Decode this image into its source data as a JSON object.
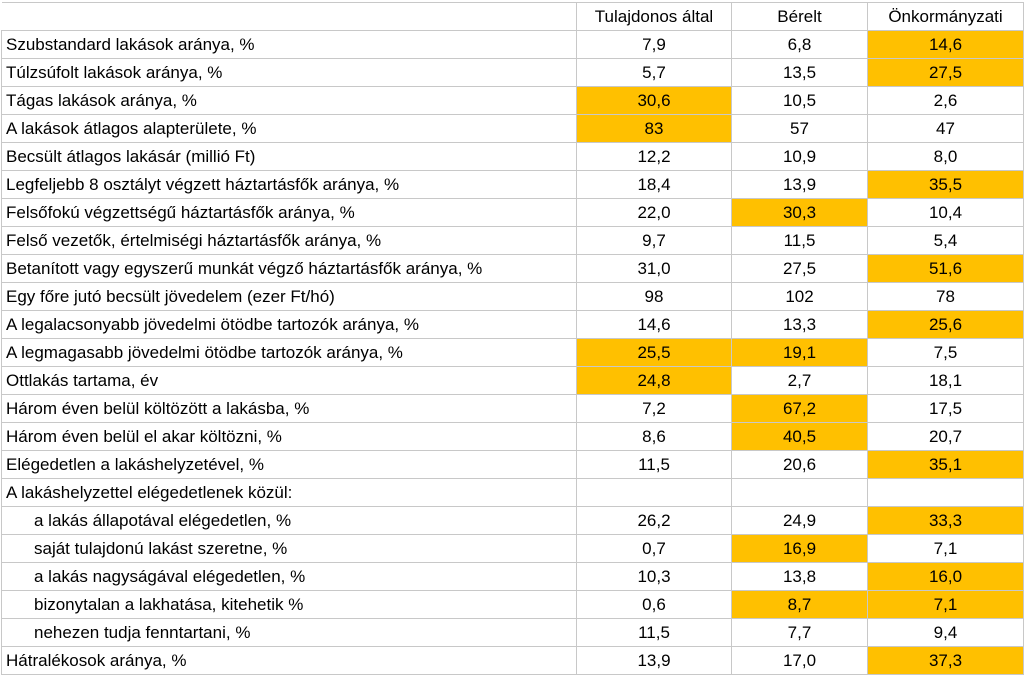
{
  "colors": {
    "highlight": "#ffc000",
    "grid": "#c8c8c8"
  },
  "headers": [
    "Tulajdonos által",
    "Bérelt",
    "Önkormányzati"
  ],
  "rows": [
    {
      "label": "Szubstandard lakások aránya, %",
      "indent": false,
      "values": [
        "7,9",
        "6,8",
        "14,6"
      ],
      "highlight": [
        false,
        false,
        true
      ]
    },
    {
      "label": "Túlzsúfolt lakások aránya, %",
      "indent": false,
      "values": [
        "5,7",
        "13,5",
        "27,5"
      ],
      "highlight": [
        false,
        false,
        true
      ]
    },
    {
      "label": "Tágas lakások aránya, %",
      "indent": false,
      "values": [
        "30,6",
        "10,5",
        "2,6"
      ],
      "highlight": [
        true,
        false,
        false
      ]
    },
    {
      "label": "A lakások átlagos alapterülete, %",
      "indent": false,
      "values": [
        "83",
        "57",
        "47"
      ],
      "highlight": [
        true,
        false,
        false
      ]
    },
    {
      "label": "Becsült átlagos lakásár (millió Ft)",
      "indent": false,
      "values": [
        "12,2",
        "10,9",
        "8,0"
      ],
      "highlight": [
        false,
        false,
        false
      ]
    },
    {
      "label": "Legfeljebb 8 osztályt végzett háztartásfők aránya, %",
      "indent": false,
      "values": [
        "18,4",
        "13,9",
        "35,5"
      ],
      "highlight": [
        false,
        false,
        true
      ]
    },
    {
      "label": "Felsőfokú végzettségű háztartásfők aránya, %",
      "indent": false,
      "values": [
        "22,0",
        "30,3",
        "10,4"
      ],
      "highlight": [
        false,
        true,
        false
      ]
    },
    {
      "label": "Felső vezetők, értelmiségi háztartásfők aránya, %",
      "indent": false,
      "values": [
        "9,7",
        "11,5",
        "5,4"
      ],
      "highlight": [
        false,
        false,
        false
      ]
    },
    {
      "label": "Betanított vagy egyszerű munkát végző háztartásfők aránya, %",
      "indent": false,
      "values": [
        "31,0",
        "27,5",
        "51,6"
      ],
      "highlight": [
        false,
        false,
        true
      ]
    },
    {
      "label": "Egy főre jutó becsült jövedelem (ezer Ft/hó)",
      "indent": false,
      "values": [
        "98",
        "102",
        "78"
      ],
      "highlight": [
        false,
        false,
        false
      ]
    },
    {
      "label": "A legalacsonyabb jövedelmi ötödbe tartozók aránya, %",
      "indent": false,
      "values": [
        "14,6",
        "13,3",
        "25,6"
      ],
      "highlight": [
        false,
        false,
        true
      ]
    },
    {
      "label": "A legmagasabb jövedelmi ötödbe tartozók aránya, %",
      "indent": false,
      "values": [
        "25,5",
        "19,1",
        "7,5"
      ],
      "highlight": [
        true,
        true,
        false
      ]
    },
    {
      "label": "Ottlakás tartama, év",
      "indent": false,
      "values": [
        "24,8",
        "2,7",
        "18,1"
      ],
      "highlight": [
        true,
        false,
        false
      ]
    },
    {
      "label": "Három éven belül költözött a lakásba, %",
      "indent": false,
      "values": [
        "7,2",
        "67,2",
        "17,5"
      ],
      "highlight": [
        false,
        true,
        false
      ]
    },
    {
      "label": "Három éven belül el akar költözni, %",
      "indent": false,
      "values": [
        "8,6",
        "40,5",
        "20,7"
      ],
      "highlight": [
        false,
        true,
        false
      ]
    },
    {
      "label": "Elégedetlen a lakáshelyzetével, %",
      "indent": false,
      "values": [
        "11,5",
        "20,6",
        "35,1"
      ],
      "highlight": [
        false,
        false,
        true
      ]
    },
    {
      "label": "A lakáshelyzettel elégedetlenek közül:",
      "indent": false,
      "values": [
        "",
        "",
        ""
      ],
      "highlight": [
        false,
        false,
        false
      ]
    },
    {
      "label": "a lakás állapotával elégedetlen, %",
      "indent": true,
      "values": [
        "26,2",
        "24,9",
        "33,3"
      ],
      "highlight": [
        false,
        false,
        true
      ]
    },
    {
      "label": "saját tulajdonú lakást szeretne, %",
      "indent": true,
      "values": [
        "0,7",
        "16,9",
        "7,1"
      ],
      "highlight": [
        false,
        true,
        false
      ]
    },
    {
      "label": "a lakás nagyságával elégedetlen, %",
      "indent": true,
      "values": [
        "10,3",
        "13,8",
        "16,0"
      ],
      "highlight": [
        false,
        false,
        true
      ]
    },
    {
      "label": "bizonytalan a lakhatása, kitehetik %",
      "indent": true,
      "values": [
        "0,6",
        "8,7",
        "7,1"
      ],
      "highlight": [
        false,
        true,
        true
      ]
    },
    {
      "label": "nehezen tudja fenntartani, %",
      "indent": true,
      "values": [
        "11,5",
        "7,7",
        "9,4"
      ],
      "highlight": [
        false,
        false,
        false
      ]
    },
    {
      "label": "Hátralékosok aránya, %",
      "indent": false,
      "values": [
        "13,9",
        "17,0",
        "37,3"
      ],
      "highlight": [
        false,
        false,
        true
      ]
    }
  ]
}
